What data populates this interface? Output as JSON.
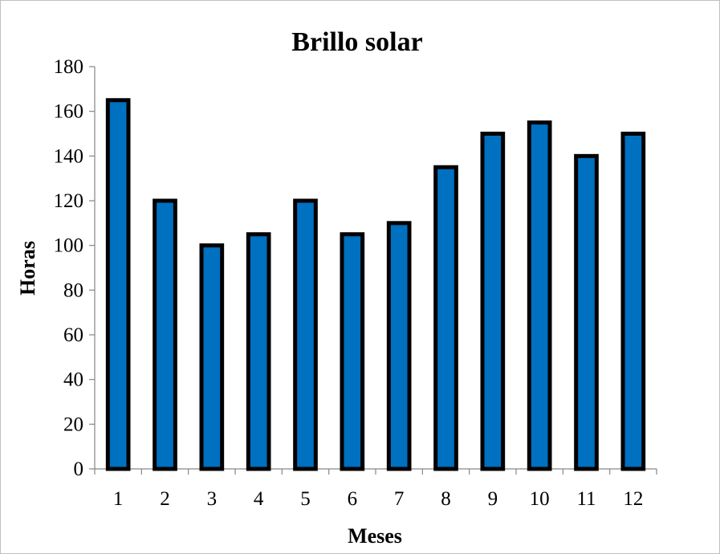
{
  "chart_data": {
    "type": "bar",
    "title": "Brillo solar",
    "xlabel": "Meses",
    "ylabel": "Horas",
    "categories": [
      "1",
      "2",
      "3",
      "4",
      "5",
      "6",
      "7",
      "8",
      "9",
      "10",
      "11",
      "12"
    ],
    "values": [
      165,
      120,
      100,
      105,
      120,
      105,
      110,
      135,
      150,
      155,
      140,
      150
    ],
    "ylim": [
      0,
      180
    ],
    "yticks": [
      0,
      20,
      40,
      60,
      80,
      100,
      120,
      140,
      160,
      180
    ],
    "grid": false,
    "legend": "none",
    "bar_color": "#0070C0",
    "bar_edge_color": "#000000"
  }
}
